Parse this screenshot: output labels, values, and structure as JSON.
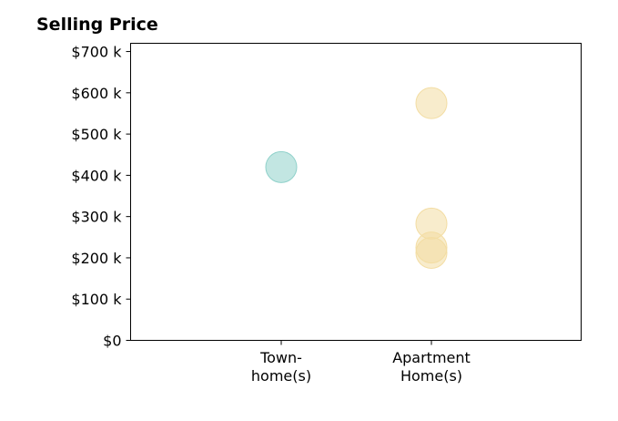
{
  "chart_data": {
    "type": "scatter",
    "title": "Selling Price",
    "xlabel": "",
    "ylabel": "",
    "categories": [
      [
        "Town-",
        "home(s)"
      ],
      [
        "Apartment",
        "Home(s)"
      ]
    ],
    "y_ticks": [
      0,
      100000,
      200000,
      300000,
      400000,
      500000,
      600000,
      700000
    ],
    "y_tick_labels": [
      "$0",
      "$100 k",
      "$200 k",
      "$300 k",
      "$400 k",
      "$500 k",
      "$600 k",
      "$700 k"
    ],
    "ylim": [
      0,
      720000
    ],
    "grid": false,
    "series": [
      {
        "category_index": 0,
        "color": "#8fd1ca",
        "values": [
          420000
        ]
      },
      {
        "category_index": 1,
        "color": "#f3dda3",
        "values": [
          575000,
          283000,
          225000,
          212000
        ]
      }
    ]
  }
}
